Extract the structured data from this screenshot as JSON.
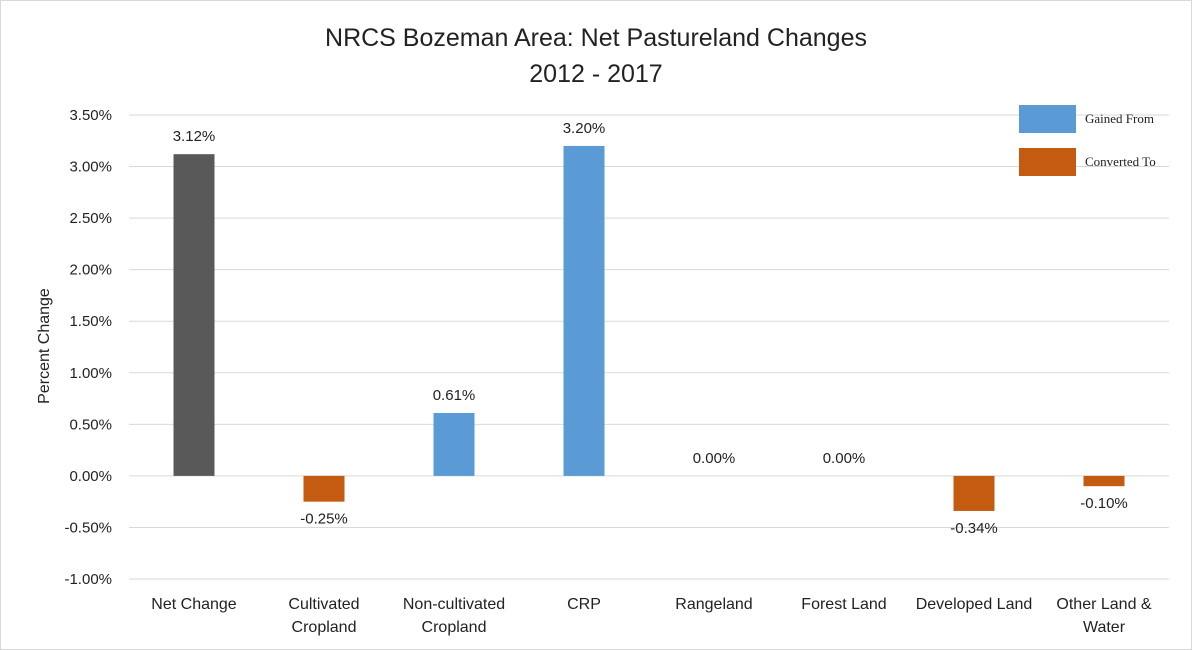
{
  "colors": {
    "net": "#595959",
    "gained": "#5b9bd5",
    "converted": "#c55a11",
    "grid": "#d9d9d9"
  },
  "chart_data": {
    "type": "bar",
    "title": "NRCS Bozeman Area: Net Pastureland Changes",
    "subtitle": "2012 - 2017",
    "ylabel": "Percent Change",
    "xlabel": "",
    "ylim": [
      -1.0,
      3.5
    ],
    "yticks": [
      "3.50%",
      "3.00%",
      "2.50%",
      "2.00%",
      "1.50%",
      "1.00%",
      "0.50%",
      "0.00%",
      "-0.50%",
      "-1.00%"
    ],
    "ytick_values": [
      3.5,
      3.0,
      2.5,
      2.0,
      1.5,
      1.0,
      0.5,
      0.0,
      -0.5,
      -1.0
    ],
    "grid": true,
    "legend_position": "top-right",
    "legend": [
      {
        "label": "Gained From",
        "color": "#5b9bd5"
      },
      {
        "label": "Converted To",
        "color": "#c55a11"
      }
    ],
    "categories": [
      [
        "Net Change"
      ],
      [
        "Cultivated",
        "Cropland"
      ],
      [
        "Non-cultivated",
        "Cropland"
      ],
      [
        "CRP"
      ],
      [
        "Rangeland"
      ],
      [
        "Forest Land"
      ],
      [
        "Developed Land"
      ],
      [
        "Other Land &",
        "Water"
      ]
    ],
    "values": [
      3.12,
      -0.25,
      0.61,
      3.2,
      0.0,
      0.0,
      -0.34,
      -0.1
    ],
    "data_labels": [
      "3.12%",
      "-0.25%",
      "0.61%",
      "3.20%",
      "0.00%",
      "0.00%",
      "-0.34%",
      "-0.10%"
    ],
    "bar_kind": [
      "net",
      "converted",
      "gained",
      "gained",
      "gained",
      "gained",
      "converted",
      "converted"
    ]
  }
}
